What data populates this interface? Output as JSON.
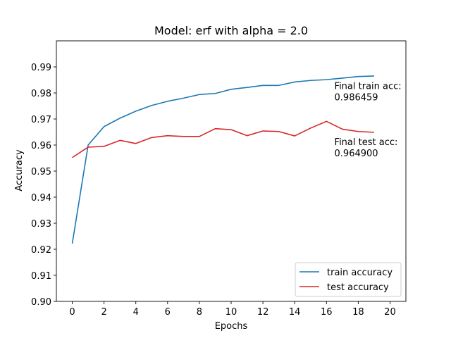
{
  "chart_data": {
    "type": "line",
    "title": "Model: erf with alpha = 2.0",
    "xlabel": "Epochs",
    "ylabel": "Accuracy",
    "xlim": [
      -1.0,
      21.0
    ],
    "ylim": [
      0.9,
      1.0
    ],
    "xticks": [
      0,
      2,
      4,
      6,
      8,
      10,
      12,
      14,
      16,
      18,
      20
    ],
    "yticks": [
      0.9,
      0.91,
      0.92,
      0.93,
      0.94,
      0.95,
      0.96,
      0.97,
      0.98,
      0.99
    ],
    "grid": false,
    "legend_position": "lower-right",
    "x": [
      0,
      1,
      2,
      3,
      4,
      5,
      6,
      7,
      8,
      9,
      10,
      11,
      12,
      13,
      14,
      15,
      16,
      17,
      18,
      19
    ],
    "series": [
      {
        "name": "train accuracy",
        "color": "#1f77b4",
        "values": [
          0.9222,
          0.96,
          0.9671,
          0.9703,
          0.973,
          0.9752,
          0.9768,
          0.978,
          0.9794,
          0.9798,
          0.9814,
          0.9821,
          0.9829,
          0.9829,
          0.9842,
          0.9848,
          0.9851,
          0.9857,
          0.9863,
          0.9865
        ]
      },
      {
        "name": "test accuracy",
        "color": "#d62728",
        "values": [
          0.9552,
          0.9592,
          0.9595,
          0.9618,
          0.9606,
          0.9629,
          0.9636,
          0.9633,
          0.9633,
          0.9663,
          0.9659,
          0.9636,
          0.9654,
          0.9652,
          0.9635,
          0.9665,
          0.9691,
          0.9661,
          0.9652,
          0.9649
        ]
      }
    ],
    "annotations": [
      {
        "line1": "Final train acc:",
        "line2": "0.986459",
        "x": 16.5,
        "y": 0.9815
      },
      {
        "line1": "Final test acc:",
        "line2": "0.964900",
        "x": 16.5,
        "y": 0.96
      }
    ]
  }
}
